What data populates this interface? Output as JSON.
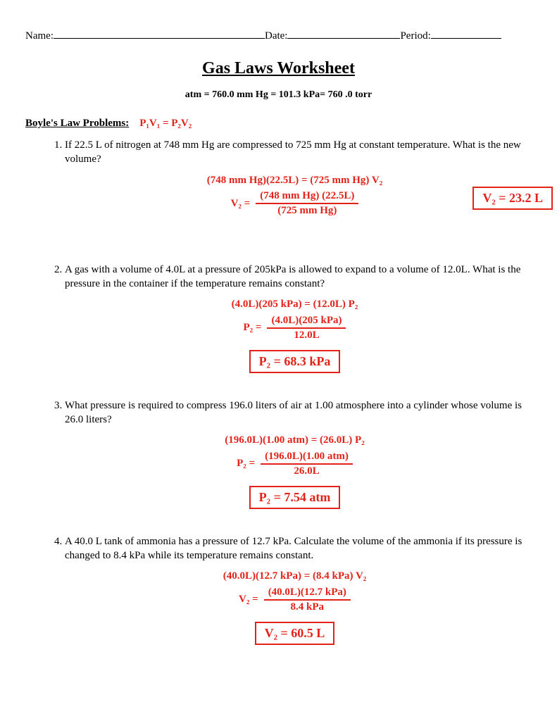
{
  "header": {
    "name_label": "Name:",
    "date_label": "Date:",
    "period_label": "Period:"
  },
  "title": "Gas Laws Worksheet",
  "conversions": "atm  =  760.0 mm Hg  = 101.3 kPa= 760 .0 torr",
  "section": {
    "label": "Boyle's Law Problems:",
    "formula_hand": "P₁V₁ = P₂V₂"
  },
  "hand_color": "#e32219",
  "problems": [
    {
      "question": "If 22.5 L of nitrogen at 748 mm Hg are compressed to 725 mm Hg at constant temperature. What is the new volume?",
      "work": {
        "eq_line": "(748 mm Hg)(22.5L) = (725 mm Hg) V₂",
        "lhs": "V₂ =",
        "frac_num": "(748 mm Hg) (22.5L)",
        "frac_den": "(725 mm Hg)",
        "strike_num": true,
        "strike_den": true,
        "answer": "V₂ = 23.2 L",
        "answer_side": true
      }
    },
    {
      "question": "A gas with a volume of 4.0L at a pressure of 205kPa is allowed to expand to a volume of 12.0L. What is the pressure in the container if the temperature remains constant?",
      "work": {
        "eq_line": "(4.0L)(205 kPa) = (12.0L) P₂",
        "lhs": "P₂ =",
        "frac_num": "(4.0L)(205 kPa)",
        "frac_den": "12.0L",
        "strike_num": true,
        "strike_den": true,
        "answer": "P₂ = 68.3 kPa",
        "answer_side": false
      }
    },
    {
      "question": "What pressure is required to compress 196.0 liters of air at 1.00 atmosphere into a cylinder whose volume is 26.0 liters?",
      "work": {
        "eq_line": "(196.0L)(1.00 atm) = (26.0L) P₂",
        "lhs": "P₂ =",
        "frac_num": "(196.0L)(1.00 atm)",
        "frac_den": "26.0L",
        "strike_num": true,
        "strike_den": true,
        "answer": "P₂ = 7.54 atm",
        "answer_side": false
      }
    },
    {
      "question": "A 40.0 L tank of ammonia has a pressure of 12.7 kPa. Calculate the volume of the ammonia if its pressure is changed to 8.4 kPa while its temperature remains constant.",
      "work": {
        "eq_line": "(40.0L)(12.7 kPa) = (8.4 kPa) V₂",
        "lhs": "V₂ =",
        "frac_num": "(40.0L)(12.7 kPa)",
        "frac_den": "8.4 kPa",
        "strike_num": true,
        "strike_den": true,
        "answer": "V₂ = 60.5 L",
        "answer_side": false
      }
    }
  ]
}
